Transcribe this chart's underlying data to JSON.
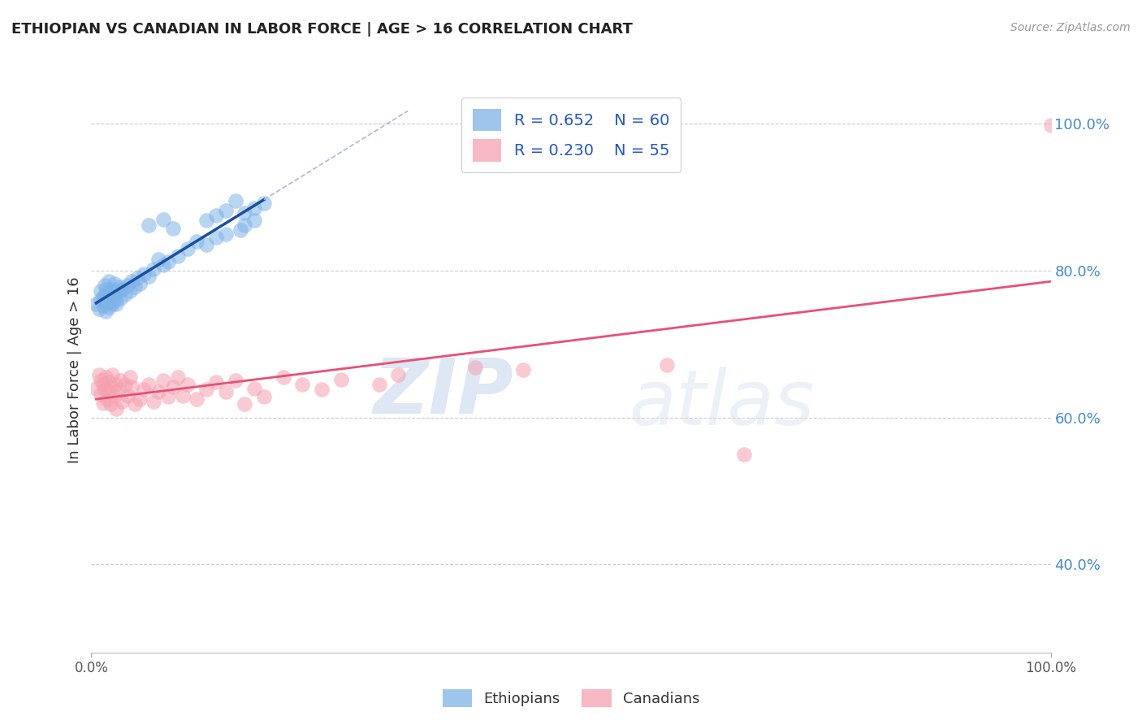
{
  "title": "ETHIOPIAN VS CANADIAN IN LABOR FORCE | AGE > 16 CORRELATION CHART",
  "source": "Source: ZipAtlas.com",
  "ylabel": "In Labor Force | Age > 16",
  "xlim": [
    0.0,
    1.0
  ],
  "ylim": [
    0.28,
    1.05
  ],
  "legend_r1": "R = 0.652",
  "legend_n1": "N = 60",
  "legend_r2": "R = 0.230",
  "legend_n2": "N = 55",
  "blue_color": "#7EB3E8",
  "pink_color": "#F5A0B0",
  "blue_line_color": "#1A4FA0",
  "pink_line_color": "#E85075",
  "blue_scatter": [
    [
      0.005,
      0.755
    ],
    [
      0.008,
      0.748
    ],
    [
      0.01,
      0.76
    ],
    [
      0.01,
      0.772
    ],
    [
      0.012,
      0.752
    ],
    [
      0.012,
      0.765
    ],
    [
      0.014,
      0.758
    ],
    [
      0.014,
      0.78
    ],
    [
      0.015,
      0.745
    ],
    [
      0.015,
      0.768
    ],
    [
      0.016,
      0.762
    ],
    [
      0.016,
      0.775
    ],
    [
      0.018,
      0.75
    ],
    [
      0.018,
      0.77
    ],
    [
      0.018,
      0.785
    ],
    [
      0.02,
      0.758
    ],
    [
      0.02,
      0.772
    ],
    [
      0.02,
      0.76
    ],
    [
      0.022,
      0.755
    ],
    [
      0.022,
      0.775
    ],
    [
      0.024,
      0.768
    ],
    [
      0.024,
      0.782
    ],
    [
      0.025,
      0.76
    ],
    [
      0.026,
      0.755
    ],
    [
      0.028,
      0.772
    ],
    [
      0.03,
      0.778
    ],
    [
      0.03,
      0.762
    ],
    [
      0.032,
      0.775
    ],
    [
      0.035,
      0.768
    ],
    [
      0.038,
      0.78
    ],
    [
      0.04,
      0.772
    ],
    [
      0.042,
      0.785
    ],
    [
      0.045,
      0.778
    ],
    [
      0.048,
      0.79
    ],
    [
      0.05,
      0.782
    ],
    [
      0.055,
      0.795
    ],
    [
      0.06,
      0.792
    ],
    [
      0.065,
      0.802
    ],
    [
      0.07,
      0.815
    ],
    [
      0.075,
      0.808
    ],
    [
      0.08,
      0.812
    ],
    [
      0.09,
      0.82
    ],
    [
      0.1,
      0.83
    ],
    [
      0.11,
      0.84
    ],
    [
      0.12,
      0.835
    ],
    [
      0.13,
      0.845
    ],
    [
      0.14,
      0.85
    ],
    [
      0.155,
      0.855
    ],
    [
      0.16,
      0.862
    ],
    [
      0.17,
      0.868
    ],
    [
      0.06,
      0.862
    ],
    [
      0.075,
      0.87
    ],
    [
      0.085,
      0.858
    ],
    [
      0.12,
      0.868
    ],
    [
      0.13,
      0.875
    ],
    [
      0.14,
      0.882
    ],
    [
      0.16,
      0.878
    ],
    [
      0.17,
      0.885
    ],
    [
      0.18,
      0.892
    ],
    [
      0.15,
      0.895
    ]
  ],
  "pink_scatter": [
    [
      0.005,
      0.64
    ],
    [
      0.008,
      0.658
    ],
    [
      0.01,
      0.632
    ],
    [
      0.01,
      0.65
    ],
    [
      0.012,
      0.62
    ],
    [
      0.012,
      0.645
    ],
    [
      0.014,
      0.638
    ],
    [
      0.015,
      0.655
    ],
    [
      0.016,
      0.625
    ],
    [
      0.018,
      0.648
    ],
    [
      0.018,
      0.635
    ],
    [
      0.02,
      0.618
    ],
    [
      0.02,
      0.642
    ],
    [
      0.022,
      0.658
    ],
    [
      0.024,
      0.63
    ],
    [
      0.025,
      0.645
    ],
    [
      0.026,
      0.612
    ],
    [
      0.028,
      0.638
    ],
    [
      0.03,
      0.65
    ],
    [
      0.032,
      0.622
    ],
    [
      0.035,
      0.645
    ],
    [
      0.038,
      0.63
    ],
    [
      0.04,
      0.655
    ],
    [
      0.042,
      0.642
    ],
    [
      0.045,
      0.618
    ],
    [
      0.05,
      0.625
    ],
    [
      0.055,
      0.638
    ],
    [
      0.06,
      0.645
    ],
    [
      0.065,
      0.622
    ],
    [
      0.07,
      0.635
    ],
    [
      0.075,
      0.65
    ],
    [
      0.08,
      0.628
    ],
    [
      0.085,
      0.642
    ],
    [
      0.09,
      0.655
    ],
    [
      0.095,
      0.63
    ],
    [
      0.1,
      0.645
    ],
    [
      0.11,
      0.625
    ],
    [
      0.12,
      0.638
    ],
    [
      0.13,
      0.648
    ],
    [
      0.14,
      0.635
    ],
    [
      0.15,
      0.65
    ],
    [
      0.16,
      0.618
    ],
    [
      0.17,
      0.64
    ],
    [
      0.18,
      0.628
    ],
    [
      0.2,
      0.655
    ],
    [
      0.22,
      0.645
    ],
    [
      0.24,
      0.638
    ],
    [
      0.26,
      0.652
    ],
    [
      0.3,
      0.645
    ],
    [
      0.32,
      0.658
    ],
    [
      0.4,
      0.668
    ],
    [
      0.45,
      0.665
    ],
    [
      0.6,
      0.672
    ],
    [
      0.68,
      0.55
    ],
    [
      1.0,
      0.998
    ]
  ],
  "watermark_text": "ZIP",
  "watermark_text2": "atlas",
  "background_color": "#FFFFFF",
  "grid_color": "#CCCCCC"
}
